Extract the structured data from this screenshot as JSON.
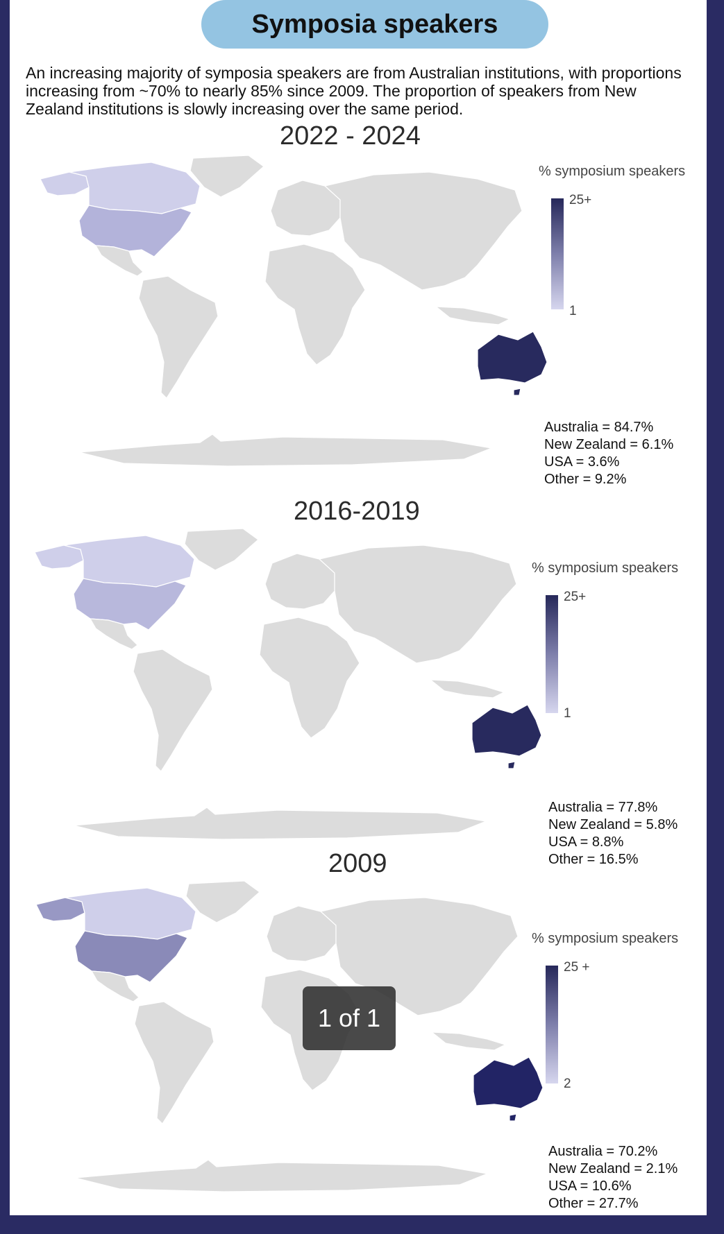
{
  "title": "Symposia speakers",
  "intro": "An increasing majority of symposia speakers are from Australian institutions, with proportions increasing from ~70% to nearly 85% since 2009. The proportion of speakers from New Zealand institutions is slowly increasing over the same period.",
  "colors": {
    "background_land": "#dcdcdc",
    "scale_low": "#d6d6ee",
    "scale_high": "#26285a",
    "title_pill": "#94c4e2",
    "frame": "#2a2b63"
  },
  "maps": [
    {
      "period": "2022 - 2024",
      "legend": {
        "title": "% symposium speakers",
        "max": "25+",
        "min": "1"
      },
      "stats": [
        "Australia = 84.7%",
        "New Zealand = 6.1%",
        "USA = 3.6%",
        "Other = 9.2%"
      ],
      "fills": {
        "australia": "#282a5e",
        "usa": "#b3b3da",
        "canada": "#cfcfea",
        "alaska": "#cfcfea",
        "mexico": "#dcdcdc",
        "europe_hint": "#c3c3e6"
      }
    },
    {
      "period": "2016-2019",
      "legend": {
        "title": "% symposium speakers",
        "max": "25+",
        "min": "1"
      },
      "stats": [
        "Australia = 77.8%",
        "New Zealand = 5.8%",
        "USA = 8.8%",
        "Other = 16.5%"
      ],
      "fills": {
        "australia": "#282a5e",
        "usa": "#b8b8dc",
        "canada": "#cfcfea",
        "alaska": "#cfcfea",
        "mexico": "#dcdcdc",
        "europe_hint": "#bcbce2"
      }
    },
    {
      "period": "2009",
      "legend": {
        "title": "% symposium speakers",
        "max": "25 +",
        "min": "2"
      },
      "stats": [
        "Australia = 70.2%",
        "New Zealand = 2.1%",
        "USA = 10.6%",
        "Other = 27.7%"
      ],
      "fills": {
        "australia": "#222465",
        "usa": "#8a8ab8",
        "canada": "#cfcfea",
        "alaska": "#9898c4",
        "mexico": "#dcdcdc",
        "europe_hint": "#dcdcdc"
      }
    }
  ],
  "pager": "1 of 1"
}
